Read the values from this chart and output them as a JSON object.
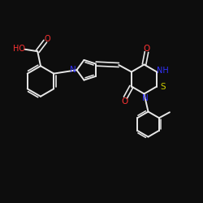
{
  "background_color": "#0d0d0d",
  "bond_color": "#e8e8e8",
  "heteroatom_colors": {
    "O": "#ff3333",
    "N": "#3333ff",
    "S": "#cccc00",
    "HO": "#ff3333"
  },
  "figsize": [
    2.5,
    2.5
  ],
  "dpi": 100
}
